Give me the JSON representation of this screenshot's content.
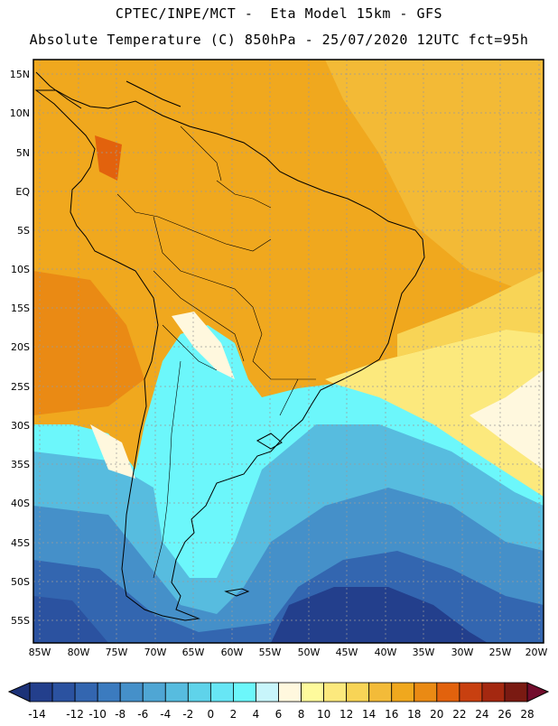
{
  "header": {
    "line1": "CPTEC/INPE/MCT -  Eta Model 15km - GFS",
    "line2": "Absolute Temperature (C) 850hPa - 25/07/2020 12UTC fct=95h"
  },
  "map": {
    "lat_labels": [
      "15N",
      "10N",
      "5N",
      "EQ",
      "5S",
      "10S",
      "15S",
      "20S",
      "25S",
      "30S",
      "35S",
      "40S",
      "45S",
      "50S",
      "55S"
    ],
    "lon_labels": [
      "85W",
      "80W",
      "75W",
      "70W",
      "65W",
      "60W",
      "55W",
      "50W",
      "45W",
      "40W",
      "35W",
      "30W",
      "25W",
      "20W"
    ],
    "frame_color": "#000000"
  },
  "colorbar": {
    "labels": [
      "-14",
      "-12",
      "-10",
      "-8",
      "-6",
      "-4",
      "-2",
      "0",
      "2",
      "4",
      "6",
      "8",
      "10",
      "12",
      "14",
      "16",
      "18",
      "20",
      "22",
      "24",
      "26",
      "28"
    ],
    "colors": [
      "#233f8c",
      "#2b52a0",
      "#3366b0",
      "#3b7bbf",
      "#4590c9",
      "#4fa6d4",
      "#57bcdf",
      "#5fd3ea",
      "#67e6f5",
      "#6cf7fb",
      "#c8f5fb",
      "#fff8de",
      "#fefa9c",
      "#fce97d",
      "#f8d456",
      "#f3bb39",
      "#f0a81e",
      "#ea8a14",
      "#e2620d",
      "#c84010",
      "#a42810",
      "#7a1a12"
    ],
    "under_color": "#1c3278",
    "over_color": "#720c2c"
  }
}
